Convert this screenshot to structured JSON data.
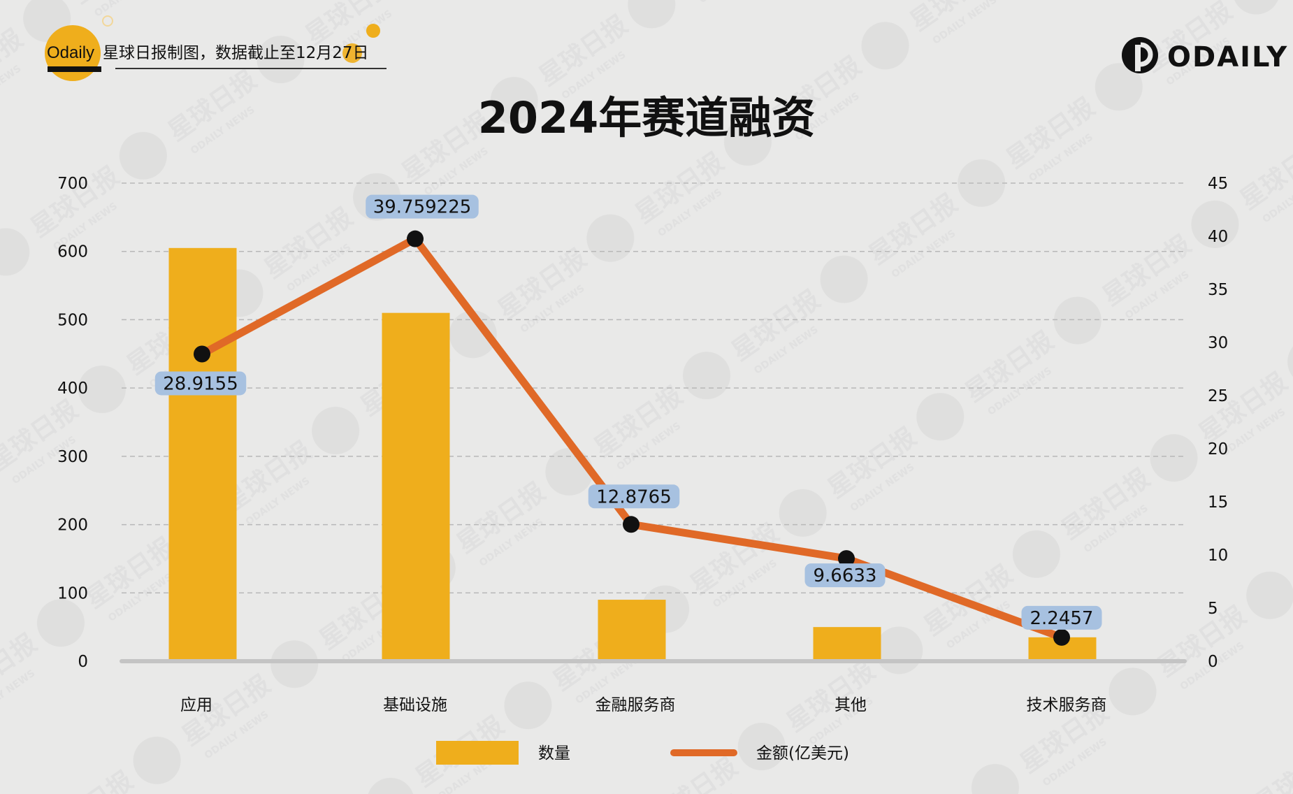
{
  "header": {
    "brand": "Odaily",
    "source_note": "星球日报制图，数据截止至12月27日",
    "logo_text": "ODAILY"
  },
  "chart_data": {
    "type": "bar",
    "title": "2024年赛道融资",
    "categories": [
      "应用",
      "基础设施",
      "金融服务商",
      "其他",
      "技术服务商"
    ],
    "series": [
      {
        "name": "数量",
        "type": "bar",
        "axis": "left",
        "color": "#efae1c",
        "values": [
          605,
          510,
          90,
          50,
          35
        ]
      },
      {
        "name": "金额(亿美元)",
        "type": "line",
        "axis": "right",
        "color": "#e06927",
        "values": [
          28.9155,
          39.759225,
          12.8765,
          9.6633,
          2.2457
        ],
        "labels": [
          "28.9155",
          "39.759225",
          "12.8765",
          "9.6633",
          "2.2457"
        ]
      }
    ],
    "left_axis": {
      "ylim": [
        0,
        700
      ],
      "ticks": [
        "0",
        "100",
        "200",
        "300",
        "400",
        "500",
        "600",
        "700"
      ]
    },
    "right_axis": {
      "ylim": [
        0,
        45
      ],
      "ticks": [
        "0",
        "5",
        "10",
        "15",
        "20",
        "25",
        "30",
        "35",
        "40",
        "45"
      ]
    },
    "grid": true,
    "legend_position": "bottom",
    "colors": {
      "bar": "#efae1c",
      "line": "#e06927",
      "label_bg": "#a7c1e0",
      "grid": "#b8b8b8",
      "axis": "#c4c4c4"
    }
  }
}
